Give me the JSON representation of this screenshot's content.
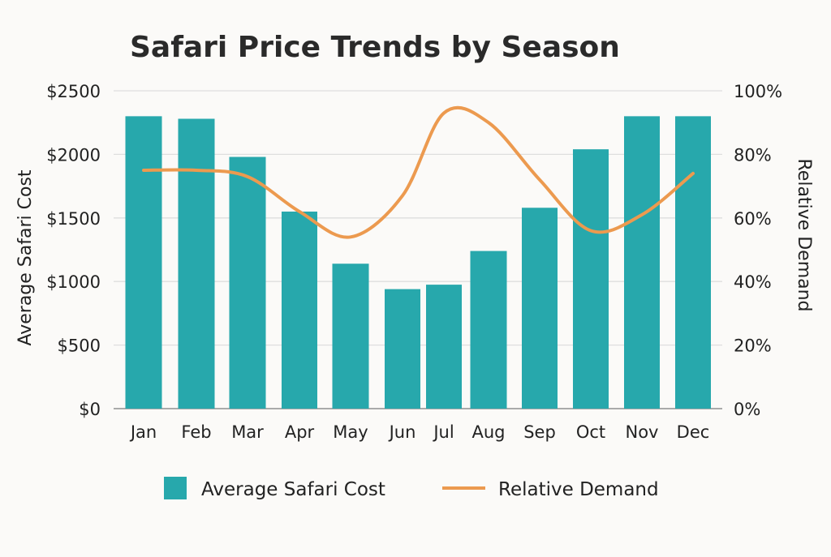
{
  "chart_data": {
    "type": "bar",
    "title": "Safari Price Trends by Season",
    "categories": [
      "Jan",
      "Feb",
      "Mar",
      "Apr",
      "May",
      "Jun",
      "Jul",
      "Aug",
      "Sep",
      "Oct",
      "Nov",
      "Dec"
    ],
    "series": [
      {
        "name": "Average Safari Cost",
        "type": "bar",
        "axis": "left",
        "color": "#27a8ac",
        "values": [
          2300,
          2280,
          1980,
          1550,
          1140,
          940,
          975,
          1240,
          1580,
          2040,
          2300,
          2300
        ]
      },
      {
        "name": "Relative Demand",
        "type": "line",
        "axis": "right",
        "color": "#ec9a4f",
        "smooth": true,
        "values": [
          75,
          75,
          73,
          62,
          54,
          67,
          93,
          90,
          72,
          56,
          61,
          74
        ]
      }
    ],
    "ylabel": "Average Safari Cost",
    "y2label": "Relative Demand",
    "ylim": [
      0,
      2500
    ],
    "y2lim": [
      0,
      100
    ],
    "yticks": [
      "$0",
      "$500",
      "$1000",
      "$1500",
      "$2000",
      "$2500"
    ],
    "y2ticks": [
      "0%",
      "20%",
      "40%",
      "60%",
      "80%",
      "100%"
    ],
    "grid": true,
    "legend": "bottom"
  }
}
